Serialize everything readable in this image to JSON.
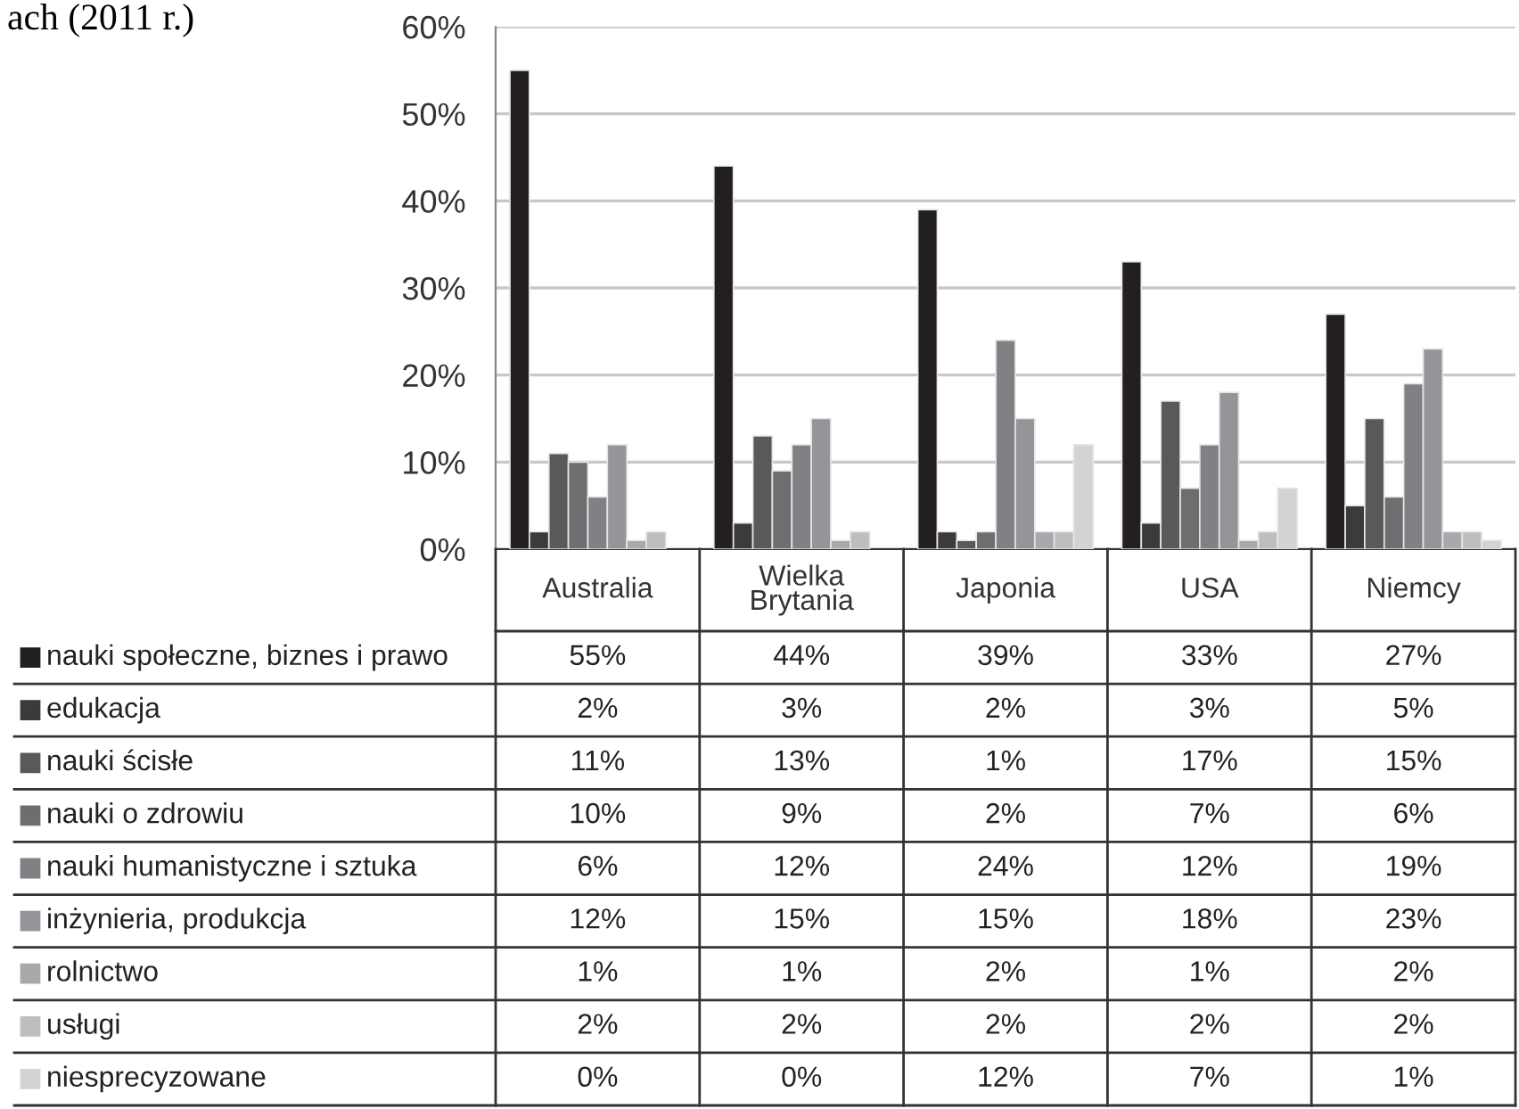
{
  "chart_data": {
    "type": "bar",
    "title": "ach (2011 r.)",
    "categories": [
      "Australia",
      "Wielka\nBrytania",
      "Japonia",
      "USA",
      "Niemcy"
    ],
    "ylim": [
      0,
      60
    ],
    "yticks": [
      {
        "value": 0,
        "label": "0%"
      },
      {
        "value": 10,
        "label": "10%"
      },
      {
        "value": 20,
        "label": "20%"
      },
      {
        "value": 30,
        "label": "30%"
      },
      {
        "value": 40,
        "label": "40%"
      },
      {
        "value": 50,
        "label": "50%"
      },
      {
        "value": 60,
        "label": "60%"
      }
    ],
    "grid": "y",
    "legend": "bottom",
    "series": [
      {
        "name": "nauki społeczne, biznes i prawo",
        "color": "#231f20",
        "values": [
          55,
          44,
          39,
          33,
          27
        ],
        "value_labels": [
          "55%",
          "44%",
          "39%",
          "33%",
          "27%"
        ]
      },
      {
        "name": "edukacja",
        "color": "#3b3b3c",
        "values": [
          2,
          3,
          2,
          3,
          5
        ],
        "value_labels": [
          "2%",
          "3%",
          "2%",
          "3%",
          "5%"
        ]
      },
      {
        "name": "nauki ścisłe",
        "color": "#58595b",
        "values": [
          11,
          13,
          1,
          17,
          15
        ],
        "value_labels": [
          "11%",
          "13%",
          "1%",
          "17%",
          "15%"
        ]
      },
      {
        "name": "nauki o zdrowiu",
        "color": "#6d6e70",
        "values": [
          10,
          9,
          2,
          7,
          6
        ],
        "value_labels": [
          "10%",
          "9%",
          "2%",
          "7%",
          "6%"
        ]
      },
      {
        "name": "nauki humanistyczne i sztuka",
        "color": "#808184",
        "values": [
          6,
          12,
          24,
          12,
          19
        ],
        "value_labels": [
          "6%",
          "12%",
          "24%",
          "12%",
          "19%"
        ]
      },
      {
        "name": "inżynieria, produkcja",
        "color": "#939598",
        "values": [
          12,
          15,
          15,
          18,
          23
        ],
        "value_labels": [
          "12%",
          "15%",
          "15%",
          "18%",
          "23%"
        ]
      },
      {
        "name": "rolnictwo",
        "color": "#a7a9ac",
        "values": [
          1,
          1,
          2,
          1,
          2
        ],
        "value_labels": [
          "1%",
          "1%",
          "2%",
          "1%",
          "2%"
        ]
      },
      {
        "name": "usługi",
        "color": "#bcbec0",
        "values": [
          2,
          2,
          2,
          2,
          2
        ],
        "value_labels": [
          "2%",
          "2%",
          "2%",
          "2%",
          "2%"
        ]
      },
      {
        "name": "niesprecyzowane",
        "color": "#d1d3d4",
        "values": [
          0,
          0,
          12,
          7,
          1
        ],
        "value_labels": [
          "0%",
          "0%",
          "12%",
          "7%",
          "1%"
        ]
      }
    ]
  }
}
